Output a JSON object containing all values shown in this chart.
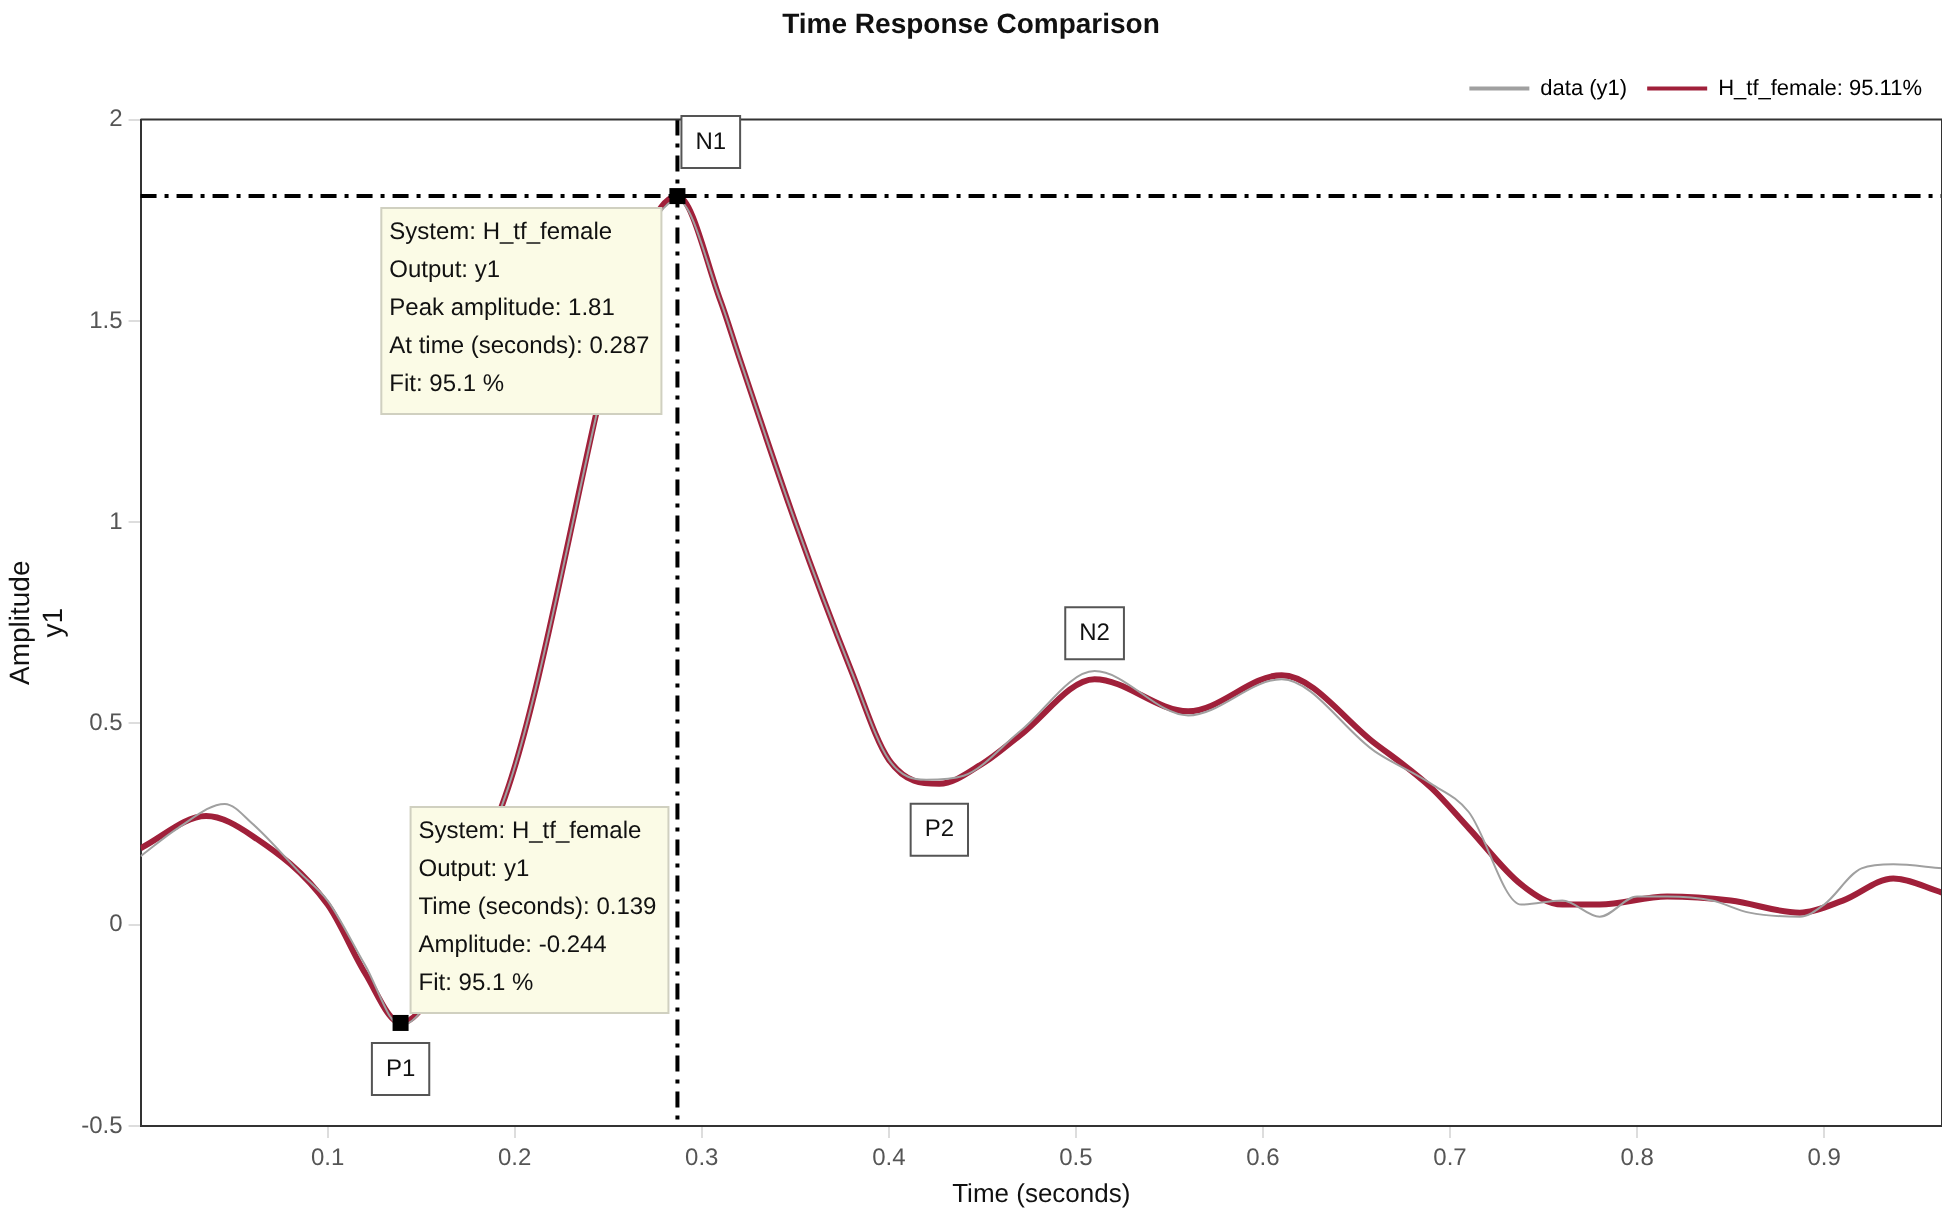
{
  "chart_data": {
    "type": "line",
    "title": "Time Response Comparison",
    "xlabel": "Time (seconds)",
    "ylabel": "Amplitude\ny1",
    "xlim": [
      0,
      0.963
    ],
    "ylim": [
      -0.5,
      2
    ],
    "xticks": [
      0.1,
      0.2,
      0.3,
      0.4,
      0.5,
      0.6,
      0.7,
      0.8,
      0.9
    ],
    "yticks": [
      -0.5,
      0,
      0.5,
      1,
      1.5,
      2
    ],
    "grid": false,
    "legend": "top right",
    "marker": "none",
    "line_style": "solid",
    "series": [
      {
        "name": "data (y1)",
        "color": "#a0a0a0",
        "x": [
          0,
          0.02,
          0.045,
          0.06,
          0.085,
          0.1,
          0.12,
          0.139,
          0.195,
          0.287,
          0.31,
          0.32,
          0.35,
          0.38,
          0.4,
          0.42,
          0.44,
          0.47,
          0.51,
          0.56,
          0.61,
          0.66,
          0.69,
          0.71,
          0.738,
          0.76,
          0.78,
          0.8,
          0.816,
          0.84,
          0.86,
          0.887,
          0.9,
          0.92,
          0.937,
          0.963
        ],
        "values": [
          0.17,
          0.24,
          0.3,
          0.25,
          0.13,
          0.06,
          -0.1,
          -0.25,
          0.32,
          1.8,
          1.55,
          1.41,
          1.0,
          0.63,
          0.41,
          0.36,
          0.37,
          0.48,
          0.63,
          0.52,
          0.61,
          0.43,
          0.35,
          0.28,
          0.05,
          0.06,
          0.02,
          0.07,
          0.07,
          0.06,
          0.03,
          0.02,
          0.05,
          0.14,
          0.15,
          0.14
        ]
      },
      {
        "name": "H_tf_female: 95.11%",
        "color": "#a0203a",
        "x": [
          0,
          0.035,
          0.06,
          0.1,
          0.12,
          0.139,
          0.195,
          0.287,
          0.31,
          0.32,
          0.35,
          0.38,
          0.4,
          0.427,
          0.45,
          0.47,
          0.51,
          0.56,
          0.61,
          0.66,
          0.69,
          0.71,
          0.738,
          0.76,
          0.78,
          0.816,
          0.85,
          0.887,
          0.91,
          0.937,
          0.963
        ],
        "values": [
          0.19,
          0.27,
          0.22,
          0.05,
          -0.12,
          -0.244,
          0.32,
          1.81,
          1.55,
          1.41,
          1.0,
          0.63,
          0.41,
          0.35,
          0.4,
          0.47,
          0.61,
          0.53,
          0.62,
          0.45,
          0.34,
          0.24,
          0.1,
          0.05,
          0.05,
          0.07,
          0.06,
          0.03,
          0.06,
          0.115,
          0.08
        ]
      }
    ],
    "ref_lines": [
      {
        "axis": "y",
        "value": 1.81,
        "line_style": "dashdot",
        "color": "#000000"
      },
      {
        "axis": "x",
        "value": 0.287,
        "line_style": "dashdot",
        "color": "#000000"
      }
    ],
    "annotations": [
      {
        "text": "System: H_tf_female\nOutput: y1\nPeak amplitude: 1.81\nAt time (seconds): 0.287\nFit: 95.1 %",
        "x": 0.287,
        "y": 1.81
      },
      {
        "text": "System: H_tf_female\nOutput: y1\nTime (seconds): 0.139\nAmplitude: -0.244\nFit: 95.1 %",
        "x": 0.139,
        "y": -0.244
      },
      {
        "text": "N1",
        "x": 0.287,
        "y": 1.81
      },
      {
        "text": "P1",
        "x": 0.139,
        "y": -0.244
      },
      {
        "text": "N2",
        "x": 0.51,
        "y": 0.61
      },
      {
        "text": "P2",
        "x": 0.427,
        "y": 0.35
      }
    ]
  }
}
